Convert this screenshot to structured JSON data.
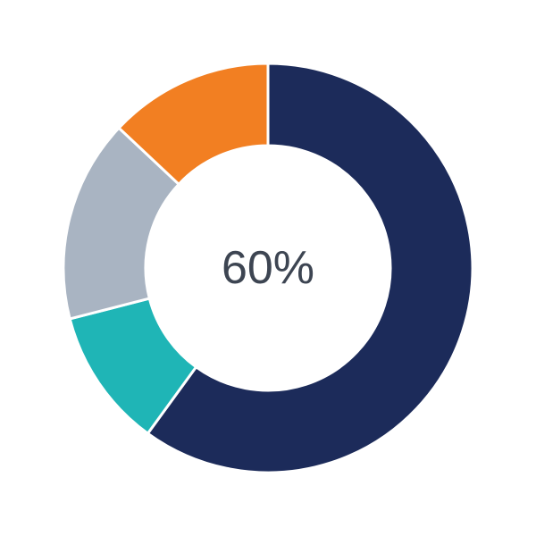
{
  "chart_data": {
    "type": "pie",
    "variant": "donut",
    "center_label": "60%",
    "legend": "none",
    "slices": [
      {
        "value": 60,
        "color": "#1c2b5a"
      },
      {
        "value": 11,
        "color": "#1fb5b6"
      },
      {
        "value": 16,
        "color": "#a9b4c2"
      },
      {
        "value": 13,
        "color": "#f27f22"
      }
    ]
  }
}
